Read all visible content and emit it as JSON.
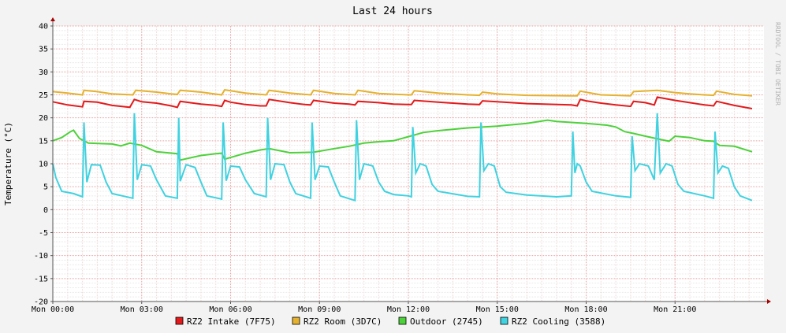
{
  "chart_data": {
    "type": "line",
    "title": "Last 24 hours",
    "ylabel": "Temperature (°C)",
    "xlabel": "",
    "watermark": "RRDTOOL / TOBI OETIKER",
    "ylim": [
      -20,
      40
    ],
    "y_ticks": [
      -20,
      -15,
      -10,
      -5,
      0,
      5,
      10,
      15,
      20,
      25,
      30,
      35,
      40
    ],
    "xlim": [
      0,
      24
    ],
    "x_ticks": [
      {
        "x": 0,
        "label": "Mon 00:00"
      },
      {
        "x": 3,
        "label": "Mon 03:00"
      },
      {
        "x": 6,
        "label": "Mon 06:00"
      },
      {
        "x": 9,
        "label": "Mon 09:00"
      },
      {
        "x": 12,
        "label": "Mon 12:00"
      },
      {
        "x": 15,
        "label": "Mon 15:00"
      },
      {
        "x": 18,
        "label": "Mon 18:00"
      },
      {
        "x": 21,
        "label": "Mon 21:00"
      }
    ],
    "grid": true,
    "legend_position": "bottom",
    "series": [
      {
        "name": "RZ2 Intake (7F75)",
        "color": "#e31a1c",
        "points": [
          [
            0,
            23.5
          ],
          [
            0.5,
            22.8
          ],
          [
            1,
            22.4
          ],
          [
            1.05,
            23.6
          ],
          [
            1.5,
            23.4
          ],
          [
            2,
            22.7
          ],
          [
            2.6,
            22.3
          ],
          [
            2.75,
            24.0
          ],
          [
            3,
            23.5
          ],
          [
            3.5,
            23.2
          ],
          [
            4,
            22.6
          ],
          [
            4.2,
            22.3
          ],
          [
            4.3,
            23.6
          ],
          [
            5,
            23.0
          ],
          [
            5.5,
            22.7
          ],
          [
            5.7,
            22.5
          ],
          [
            5.8,
            23.8
          ],
          [
            6,
            23.4
          ],
          [
            6.5,
            22.9
          ],
          [
            7,
            22.6
          ],
          [
            7.2,
            22.6
          ],
          [
            7.3,
            24.0
          ],
          [
            8,
            23.3
          ],
          [
            8.5,
            22.9
          ],
          [
            8.7,
            22.8
          ],
          [
            8.8,
            23.8
          ],
          [
            9.5,
            23.2
          ],
          [
            10,
            23.0
          ],
          [
            10.2,
            22.8
          ],
          [
            10.3,
            23.6
          ],
          [
            11,
            23.3
          ],
          [
            11.5,
            23.0
          ],
          [
            12,
            22.9
          ],
          [
            12.1,
            22.9
          ],
          [
            12.2,
            23.8
          ],
          [
            13,
            23.4
          ],
          [
            13.5,
            23.2
          ],
          [
            14,
            23.0
          ],
          [
            14.4,
            22.9
          ],
          [
            14.5,
            23.7
          ],
          [
            15,
            23.5
          ],
          [
            16,
            23.1
          ],
          [
            17.5,
            22.8
          ],
          [
            17.7,
            22.6
          ],
          [
            17.8,
            24.0
          ],
          [
            18,
            23.7
          ],
          [
            18.5,
            23.2
          ],
          [
            19,
            22.8
          ],
          [
            19.5,
            22.5
          ],
          [
            19.6,
            23.6
          ],
          [
            20,
            23.3
          ],
          [
            20.3,
            22.8
          ],
          [
            20.4,
            24.5
          ],
          [
            21,
            23.8
          ],
          [
            21.5,
            23.3
          ],
          [
            22,
            22.8
          ],
          [
            22.3,
            22.6
          ],
          [
            22.4,
            23.6
          ],
          [
            23,
            22.7
          ],
          [
            23.6,
            22.0
          ]
        ]
      },
      {
        "name": "RZ2 Room (3D7C)",
        "color": "#e6b22e",
        "points": [
          [
            0,
            25.7
          ],
          [
            0.5,
            25.4
          ],
          [
            1,
            25.0
          ],
          [
            1.05,
            26.0
          ],
          [
            1.5,
            25.7
          ],
          [
            2,
            25.2
          ],
          [
            2.7,
            25.0
          ],
          [
            2.8,
            26.0
          ],
          [
            3.5,
            25.6
          ],
          [
            4,
            25.2
          ],
          [
            4.2,
            25.1
          ],
          [
            4.3,
            26.0
          ],
          [
            5,
            25.6
          ],
          [
            5.7,
            25.0
          ],
          [
            5.8,
            26.1
          ],
          [
            6.5,
            25.4
          ],
          [
            7.2,
            25.0
          ],
          [
            7.3,
            26.0
          ],
          [
            8,
            25.4
          ],
          [
            8.7,
            25.0
          ],
          [
            8.8,
            26.0
          ],
          [
            9.5,
            25.3
          ],
          [
            10.2,
            25.0
          ],
          [
            10.3,
            26.0
          ],
          [
            11,
            25.3
          ],
          [
            12,
            25.0
          ],
          [
            12.1,
            25.0
          ],
          [
            12.2,
            25.9
          ],
          [
            13,
            25.4
          ],
          [
            14,
            25.0
          ],
          [
            14.4,
            24.9
          ],
          [
            14.5,
            25.6
          ],
          [
            15,
            25.2
          ],
          [
            16,
            24.9
          ],
          [
            17.5,
            24.8
          ],
          [
            17.7,
            24.8
          ],
          [
            17.8,
            25.8
          ],
          [
            18.5,
            25.0
          ],
          [
            19.5,
            24.8
          ],
          [
            19.6,
            25.7
          ],
          [
            20.4,
            26.0
          ],
          [
            21,
            25.5
          ],
          [
            21.5,
            25.2
          ],
          [
            22,
            25.0
          ],
          [
            22.3,
            24.9
          ],
          [
            22.4,
            25.8
          ],
          [
            23,
            25.1
          ],
          [
            23.6,
            24.8
          ]
        ]
      },
      {
        "name": "Outdoor (2745)",
        "color": "#4dd13a",
        "points": [
          [
            0,
            15.0
          ],
          [
            0.3,
            15.7
          ],
          [
            0.6,
            17.0
          ],
          [
            0.7,
            17.3
          ],
          [
            0.9,
            15.5
          ],
          [
            1.2,
            14.5
          ],
          [
            2,
            14.3
          ],
          [
            2.3,
            13.9
          ],
          [
            2.6,
            14.5
          ],
          [
            3,
            14.0
          ],
          [
            3.5,
            12.6
          ],
          [
            4.2,
            12.2
          ],
          [
            4.3,
            10.8
          ],
          [
            5,
            11.8
          ],
          [
            5.5,
            12.2
          ],
          [
            5.7,
            12.3
          ],
          [
            5.8,
            11.0
          ],
          [
            6.5,
            12.3
          ],
          [
            7,
            13.0
          ],
          [
            7.3,
            13.3
          ],
          [
            8,
            12.4
          ],
          [
            8.8,
            12.5
          ],
          [
            9.5,
            13.3
          ],
          [
            10,
            13.8
          ],
          [
            10.5,
            14.5
          ],
          [
            11,
            14.8
          ],
          [
            11.5,
            15.0
          ],
          [
            12,
            15.9
          ],
          [
            12.5,
            16.8
          ],
          [
            13,
            17.2
          ],
          [
            14,
            17.8
          ],
          [
            15,
            18.2
          ],
          [
            16,
            18.8
          ],
          [
            16.7,
            19.5
          ],
          [
            17,
            19.2
          ],
          [
            18,
            18.8
          ],
          [
            18.7,
            18.4
          ],
          [
            19,
            18.0
          ],
          [
            19.3,
            17.0
          ],
          [
            19.6,
            16.6
          ],
          [
            20,
            16.0
          ],
          [
            20.5,
            15.3
          ],
          [
            20.8,
            14.9
          ],
          [
            21,
            16.0
          ],
          [
            21.5,
            15.7
          ],
          [
            22,
            15.0
          ],
          [
            22.3,
            14.9
          ],
          [
            22.5,
            14.0
          ],
          [
            23,
            13.8
          ],
          [
            23.6,
            12.6
          ]
        ]
      },
      {
        "name": "RZ2 Cooling (3588)",
        "color": "#3fd2e0",
        "points": [
          [
            0,
            10.0
          ],
          [
            0.1,
            7.0
          ],
          [
            0.3,
            4.0
          ],
          [
            0.7,
            3.5
          ],
          [
            1,
            2.8
          ],
          [
            1.05,
            19.0
          ],
          [
            1.15,
            6.0
          ],
          [
            1.3,
            9.8
          ],
          [
            1.6,
            9.7
          ],
          [
            1.8,
            6.0
          ],
          [
            2,
            3.5
          ],
          [
            2.7,
            2.5
          ],
          [
            2.75,
            21.0
          ],
          [
            2.85,
            6.5
          ],
          [
            3,
            9.8
          ],
          [
            3.3,
            9.5
          ],
          [
            3.5,
            6.5
          ],
          [
            3.8,
            3.0
          ],
          [
            4.2,
            2.5
          ],
          [
            4.25,
            20.0
          ],
          [
            4.3,
            6.2
          ],
          [
            4.5,
            9.8
          ],
          [
            4.8,
            9.2
          ],
          [
            5,
            6.0
          ],
          [
            5.2,
            3.0
          ],
          [
            5.7,
            2.3
          ],
          [
            5.75,
            19.0
          ],
          [
            5.85,
            6.3
          ],
          [
            6,
            9.5
          ],
          [
            6.3,
            9.3
          ],
          [
            6.5,
            6.5
          ],
          [
            6.8,
            3.5
          ],
          [
            7.2,
            2.8
          ],
          [
            7.25,
            20.0
          ],
          [
            7.35,
            6.5
          ],
          [
            7.5,
            10.0
          ],
          [
            7.8,
            9.8
          ],
          [
            8,
            6.0
          ],
          [
            8.2,
            3.5
          ],
          [
            8.7,
            2.5
          ],
          [
            8.75,
            19.0
          ],
          [
            8.85,
            6.5
          ],
          [
            9,
            9.5
          ],
          [
            9.3,
            9.3
          ],
          [
            9.5,
            6.0
          ],
          [
            9.7,
            3.0
          ],
          [
            10.2,
            2.0
          ],
          [
            10.25,
            19.5
          ],
          [
            10.35,
            6.5
          ],
          [
            10.5,
            10.0
          ],
          [
            10.8,
            9.5
          ],
          [
            11,
            6.0
          ],
          [
            11.2,
            4.0
          ],
          [
            11.5,
            3.3
          ],
          [
            12,
            3.0
          ],
          [
            12.1,
            2.8
          ],
          [
            12.15,
            18.0
          ],
          [
            12.25,
            8.0
          ],
          [
            12.4,
            10.0
          ],
          [
            12.6,
            9.5
          ],
          [
            12.8,
            5.5
          ],
          [
            13,
            4.0
          ],
          [
            14,
            2.9
          ],
          [
            14.4,
            2.8
          ],
          [
            14.45,
            19.0
          ],
          [
            14.55,
            8.5
          ],
          [
            14.7,
            10.0
          ],
          [
            14.9,
            9.5
          ],
          [
            15.1,
            5.0
          ],
          [
            15.3,
            3.8
          ],
          [
            16,
            3.2
          ],
          [
            17,
            2.8
          ],
          [
            17.5,
            3.0
          ],
          [
            17.55,
            17.0
          ],
          [
            17.62,
            8.0
          ],
          [
            17.7,
            10.0
          ],
          [
            17.8,
            9.5
          ],
          [
            18,
            6.0
          ],
          [
            18.2,
            4.0
          ],
          [
            19,
            3.0
          ],
          [
            19.5,
            2.7
          ],
          [
            19.55,
            16.0
          ],
          [
            19.65,
            8.5
          ],
          [
            19.8,
            10.0
          ],
          [
            20.1,
            9.5
          ],
          [
            20.3,
            6.5
          ],
          [
            20.4,
            21.0
          ],
          [
            20.5,
            8.0
          ],
          [
            20.7,
            10.0
          ],
          [
            20.9,
            9.5
          ],
          [
            21.1,
            5.5
          ],
          [
            21.3,
            4.0
          ],
          [
            22,
            3.0
          ],
          [
            22.3,
            2.5
          ],
          [
            22.35,
            17.0
          ],
          [
            22.45,
            8.0
          ],
          [
            22.6,
            9.5
          ],
          [
            22.8,
            9.0
          ],
          [
            23,
            5.0
          ],
          [
            23.2,
            3.0
          ],
          [
            23.6,
            2.0
          ]
        ]
      }
    ]
  }
}
